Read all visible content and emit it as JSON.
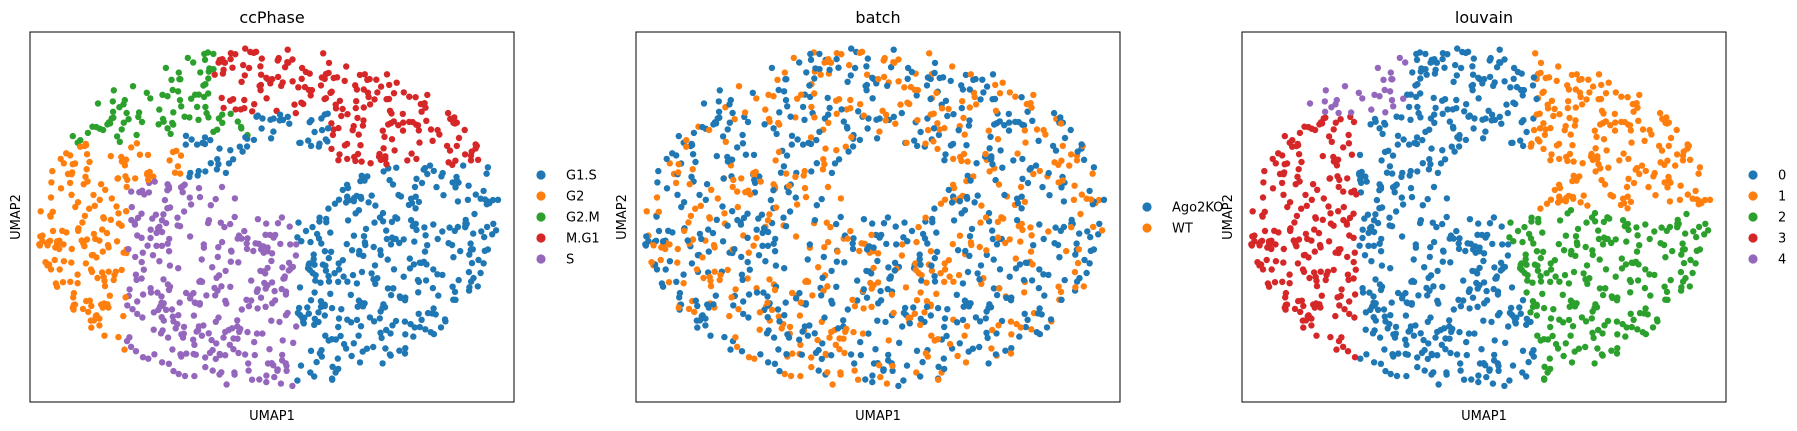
{
  "figure": {
    "panels": [
      {
        "title": "ccPhase",
        "xlabel": "UMAP1",
        "ylabel": "UMAP2",
        "legend": [
          {
            "label": "G1.S",
            "color": "#1f77b4"
          },
          {
            "label": "G2",
            "color": "#ff7f0e"
          },
          {
            "label": "G2.M",
            "color": "#2ca02c"
          },
          {
            "label": "M.G1",
            "color": "#d62728"
          },
          {
            "label": "S",
            "color": "#9467bd"
          }
        ]
      },
      {
        "title": "batch",
        "xlabel": "UMAP1",
        "ylabel": "UMAP2",
        "legend": [
          {
            "label": "Ago2KO",
            "color": "#1f77b4"
          },
          {
            "label": "WT",
            "color": "#ff7f0e"
          }
        ]
      },
      {
        "title": "louvain",
        "xlabel": "UMAP1",
        "ylabel": "UMAP2",
        "legend": [
          {
            "label": "0",
            "color": "#1f77b4"
          },
          {
            "label": "1",
            "color": "#ff7f0e"
          },
          {
            "label": "2",
            "color": "#2ca02c"
          },
          {
            "label": "3",
            "color": "#d62728"
          },
          {
            "label": "4",
            "color": "#9467bd"
          }
        ]
      }
    ]
  },
  "chart_data": [
    {
      "type": "scatter",
      "title": "ccPhase",
      "xlabel": "UMAP1",
      "ylabel": "UMAP2",
      "grid": false,
      "ticks": false,
      "legend_position": "right",
      "series": [
        {
          "name": "G1.S",
          "color": "#1f77b4",
          "region": "right half, lower-right lobe"
        },
        {
          "name": "G2",
          "color": "#ff7f0e",
          "region": "left edge, middle"
        },
        {
          "name": "G2.M",
          "color": "#2ca02c",
          "region": "upper-left arc"
        },
        {
          "name": "M.G1",
          "color": "#d62728",
          "region": "top, center to upper-right"
        },
        {
          "name": "S",
          "color": "#9467bd",
          "region": "lower-left center"
        }
      ]
    },
    {
      "type": "scatter",
      "title": "batch",
      "xlabel": "UMAP1",
      "ylabel": "UMAP2",
      "grid": false,
      "ticks": false,
      "legend_position": "right",
      "series": [
        {
          "name": "Ago2KO",
          "color": "#1f77b4",
          "region": "mixed throughout"
        },
        {
          "name": "WT",
          "color": "#ff7f0e",
          "region": "mixed throughout"
        }
      ]
    },
    {
      "type": "scatter",
      "title": "louvain",
      "xlabel": "UMAP1",
      "ylabel": "UMAP2",
      "grid": false,
      "ticks": false,
      "legend_position": "right",
      "series": [
        {
          "name": "0",
          "color": "#1f77b4",
          "region": "center-bottom"
        },
        {
          "name": "1",
          "color": "#ff7f0e",
          "region": "upper-right"
        },
        {
          "name": "2",
          "color": "#2ca02c",
          "region": "lower-right"
        },
        {
          "name": "3",
          "color": "#d62728",
          "region": "left"
        },
        {
          "name": "4",
          "color": "#9467bd",
          "region": "top-left"
        }
      ]
    }
  ]
}
